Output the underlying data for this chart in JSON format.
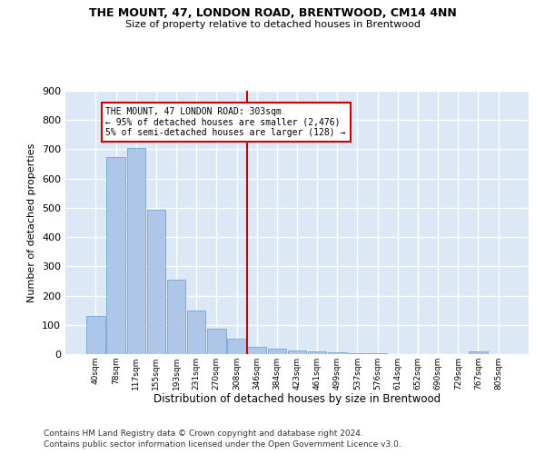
{
  "title": "THE MOUNT, 47, LONDON ROAD, BRENTWOOD, CM14 4NN",
  "subtitle": "Size of property relative to detached houses in Brentwood",
  "xlabel": "Distribution of detached houses by size in Brentwood",
  "ylabel": "Number of detached properties",
  "bar_labels": [
    "40sqm",
    "78sqm",
    "117sqm",
    "155sqm",
    "193sqm",
    "231sqm",
    "270sqm",
    "308sqm",
    "346sqm",
    "384sqm",
    "423sqm",
    "461sqm",
    "499sqm",
    "537sqm",
    "576sqm",
    "614sqm",
    "652sqm",
    "690sqm",
    "729sqm",
    "767sqm",
    "805sqm"
  ],
  "bar_values": [
    130,
    675,
    705,
    493,
    253,
    150,
    88,
    52,
    25,
    18,
    12,
    8,
    6,
    3,
    2,
    1,
    1,
    1,
    1,
    8,
    1
  ],
  "bar_color": "#aec6e8",
  "bar_edge_color": "#5a9fd4",
  "vline_x": 7.5,
  "vline_color": "#cc0000",
  "annotation_text": "THE MOUNT, 47 LONDON ROAD: 303sqm\n← 95% of detached houses are smaller (2,476)\n5% of semi-detached houses are larger (128) →",
  "annotation_box_color": "#cc0000",
  "background_color": "#dce8f5",
  "grid_color": "#ffffff",
  "fig_background": "#ffffff",
  "footer_line1": "Contains HM Land Registry data © Crown copyright and database right 2024.",
  "footer_line2": "Contains public sector information licensed under the Open Government Licence v3.0.",
  "ylim": [
    0,
    900
  ],
  "yticks": [
    0,
    100,
    200,
    300,
    400,
    500,
    600,
    700,
    800,
    900
  ]
}
